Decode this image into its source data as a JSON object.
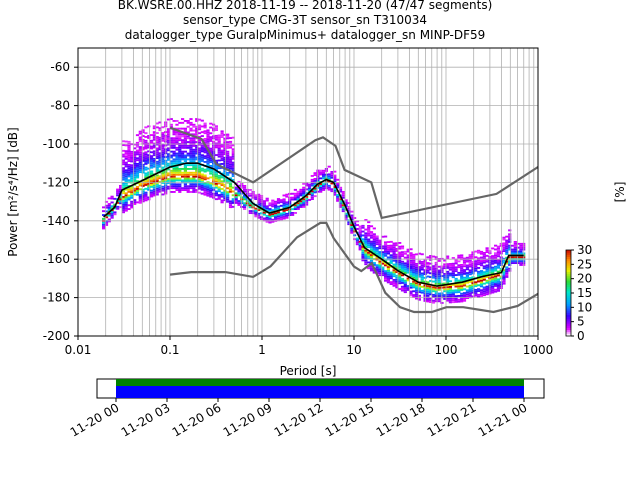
{
  "chart_data": {
    "type": "heatmap",
    "title_lines": [
      "BK.WSRE.00.HHZ   2018-11-19 -- 2018-11-20  (47/47 segments)",
      "sensor_type CMG-3T sensor_sn T310034",
      "datalogger_type GuralpMinimus+ datalogger_sn MINP-DF59"
    ],
    "xlabel": "Period [s]",
    "ylabel": "Power [m²/s⁴/Hz] [dB]",
    "x_scale": "log",
    "xlim": [
      0.01,
      1000
    ],
    "ylim": [
      -200,
      -50
    ],
    "x_ticks": [
      {
        "value": 0.01,
        "label": "0.01"
      },
      {
        "value": 0.1,
        "label": "0.1"
      },
      {
        "value": 1,
        "label": "1"
      },
      {
        "value": 10,
        "label": "10"
      },
      {
        "value": 100,
        "label": "100"
      },
      {
        "value": 1000,
        "label": "1000"
      }
    ],
    "y_ticks": [
      -60,
      -80,
      -100,
      -120,
      -140,
      -160,
      -180,
      -200
    ],
    "grid": true,
    "noise_models": [
      {
        "name": "NHNM",
        "color": "#666666",
        "points": [
          [
            0.1,
            -91.5
          ],
          [
            0.22,
            -97.4
          ],
          [
            0.32,
            -110.5
          ],
          [
            0.8,
            -120
          ],
          [
            3.8,
            -98
          ],
          [
            4.6,
            -96.5
          ],
          [
            6.3,
            -101
          ],
          [
            7.9,
            -113.5
          ],
          [
            15.4,
            -120
          ],
          [
            20,
            -138.5
          ],
          [
            354,
            -126
          ],
          [
            1000,
            -112
          ]
        ]
      },
      {
        "name": "NLNM",
        "color": "#666666",
        "points": [
          [
            0.1,
            -168
          ],
          [
            0.17,
            -166.7
          ],
          [
            0.4,
            -166.7
          ],
          [
            0.8,
            -169.2
          ],
          [
            1.24,
            -163.7
          ],
          [
            2.4,
            -148.6
          ],
          [
            4.3,
            -141.1
          ],
          [
            5,
            -141.1
          ],
          [
            6,
            -149
          ],
          [
            10,
            -163.8
          ],
          [
            12,
            -166.2
          ],
          [
            15.6,
            -162.1
          ],
          [
            21.9,
            -177.5
          ],
          [
            31.6,
            -185
          ],
          [
            45,
            -187.5
          ],
          [
            70,
            -187.5
          ],
          [
            101,
            -185
          ],
          [
            154,
            -185
          ],
          [
            328,
            -187.5
          ],
          [
            600,
            -184.4
          ],
          [
            1000,
            -178
          ]
        ]
      }
    ],
    "mean_curve": [
      [
        0.019,
        -138
      ],
      [
        0.025,
        -133
      ],
      [
        0.03,
        -124
      ],
      [
        0.05,
        -119
      ],
      [
        0.1,
        -112
      ],
      [
        0.15,
        -110
      ],
      [
        0.2,
        -110
      ],
      [
        0.3,
        -113
      ],
      [
        0.5,
        -120
      ],
      [
        0.8,
        -131
      ],
      [
        1.2,
        -136
      ],
      [
        2,
        -133
      ],
      [
        3,
        -127
      ],
      [
        4,
        -121
      ],
      [
        5,
        -118.5
      ],
      [
        6,
        -120
      ],
      [
        8,
        -132
      ],
      [
        10,
        -143
      ],
      [
        13,
        -154
      ],
      [
        20,
        -160
      ],
      [
        30,
        -166
      ],
      [
        50,
        -172
      ],
      [
        80,
        -174
      ],
      [
        150,
        -172
      ],
      [
        250,
        -169
      ],
      [
        400,
        -167
      ],
      [
        480,
        -158
      ],
      [
        700,
        -158
      ]
    ],
    "mode_curve": [
      [
        0.019,
        -140
      ],
      [
        0.03,
        -128
      ],
      [
        0.05,
        -122
      ],
      [
        0.1,
        -117
      ],
      [
        0.2,
        -117
      ],
      [
        0.3,
        -120
      ],
      [
        0.5,
        -126
      ],
      [
        0.8,
        -133
      ],
      [
        1.2,
        -137
      ],
      [
        2,
        -134
      ],
      [
        3,
        -128
      ],
      [
        4,
        -122
      ],
      [
        5,
        -119
      ],
      [
        6,
        -121
      ],
      [
        8,
        -134
      ],
      [
        10,
        -145
      ],
      [
        13,
        -155
      ],
      [
        20,
        -162
      ],
      [
        30,
        -167
      ],
      [
        50,
        -173
      ],
      [
        80,
        -175
      ],
      [
        150,
        -174
      ],
      [
        250,
        -171
      ],
      [
        400,
        -168
      ],
      [
        480,
        -159
      ],
      [
        700,
        -159
      ]
    ],
    "colorbar": {
      "label": "[%]",
      "range": [
        0,
        30
      ],
      "ticks": [
        0,
        5,
        10,
        15,
        20,
        25,
        30
      ]
    },
    "time_axis": {
      "range": [
        "2018-11-20 00:00",
        "2018-11-21 00:00"
      ],
      "ticks": [
        "11-20 00",
        "11-20 03",
        "11-20 06",
        "11-20 09",
        "11-20 12",
        "11-20 15",
        "11-20 18",
        "11-20 21",
        "11-21 00"
      ],
      "coverage_colors": [
        "#008000",
        "#0000ff"
      ]
    }
  }
}
